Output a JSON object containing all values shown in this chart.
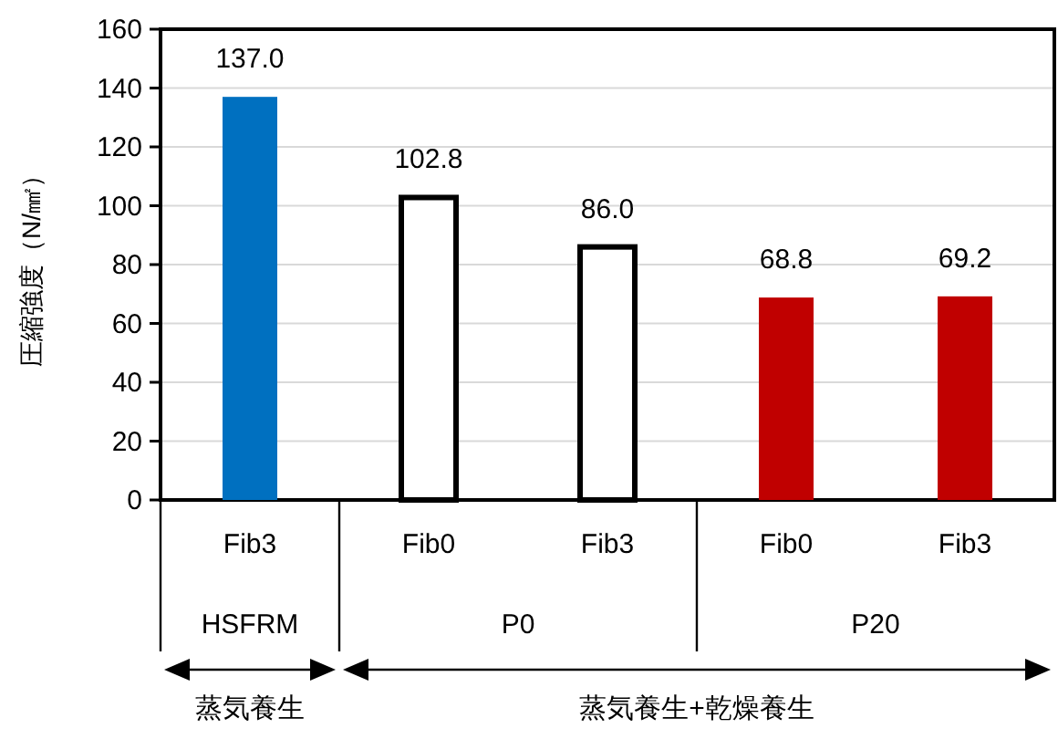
{
  "chart_data": {
    "type": "bar",
    "ylabel": "圧縮強度（N/㎟）",
    "categories": [
      "Fib3",
      "Fib0",
      "Fib3",
      "Fib0",
      "Fib3"
    ],
    "values": [
      137.0,
      102.8,
      86.0,
      68.8,
      69.2
    ],
    "colors": [
      "#0070c0",
      "#ffffff",
      "#ffffff",
      "#c00000",
      "#c00000"
    ],
    "ylim": [
      0,
      160
    ],
    "yticks": [
      0,
      20,
      40,
      60,
      80,
      100,
      120,
      140,
      160
    ],
    "value_labels": [
      "137.0",
      "102.8",
      "86.0",
      "68.8",
      "69.2"
    ],
    "grid": "y",
    "annotations": [
      "HSFRM",
      "P0",
      "P20",
      "蒸気養生",
      "蒸気養生+乾燥養生"
    ]
  }
}
